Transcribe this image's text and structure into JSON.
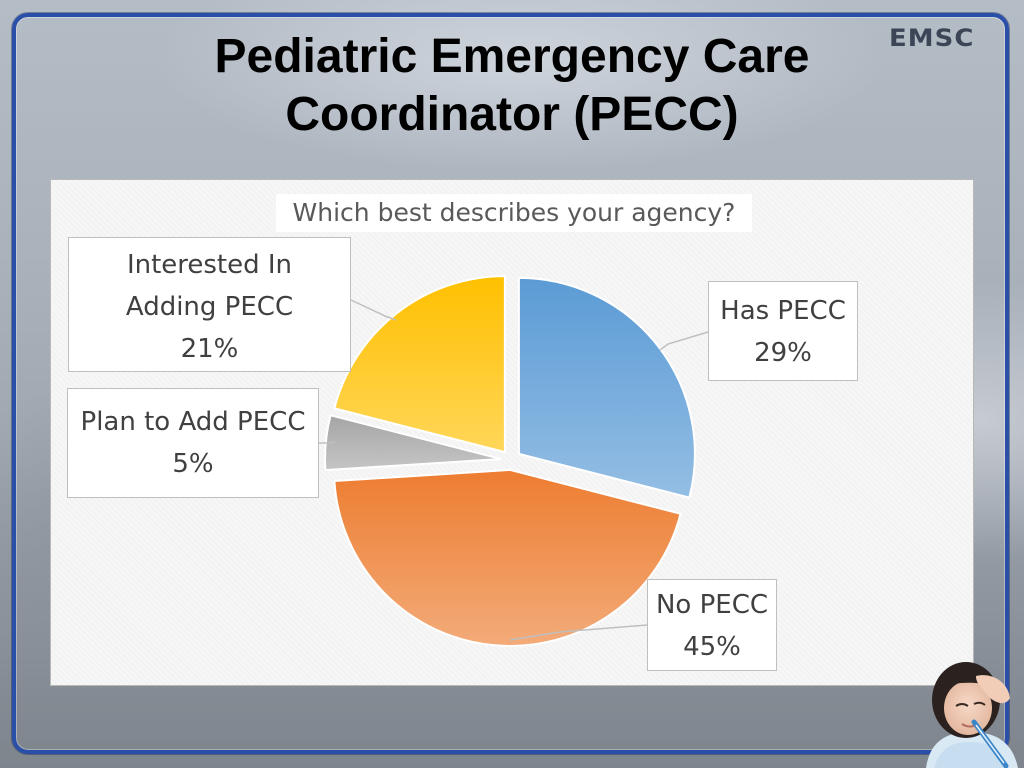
{
  "brand": {
    "logo_text": "EMSC"
  },
  "slide": {
    "title_lines": [
      "Pediatric Emergency Care",
      "Coordinator (PECC)"
    ]
  },
  "colors": {
    "frame": "#2a4fa8",
    "has_pecc": "#5b9bd5",
    "no_pecc": "#ed7d31",
    "plan_to_add": "#a5a5a5",
    "interested": "#ffc000"
  },
  "chart_data": {
    "type": "pie",
    "title": "Which best describes your agency?",
    "slices": [
      {
        "label": "Has PECC",
        "value": 29,
        "value_label": "29%",
        "color_key": "has_pecc",
        "exploded": true
      },
      {
        "label": "No PECC",
        "value": 45,
        "value_label": "45%",
        "color_key": "no_pecc",
        "exploded": true
      },
      {
        "label": "Plan to Add PECC",
        "value": 5,
        "value_label": "5%",
        "color_key": "plan_to_add",
        "exploded": true
      },
      {
        "label": "Interested In Adding PECC",
        "label_lines": [
          "Interested In",
          "Adding PECC"
        ],
        "value": 21,
        "value_label": "21%",
        "color_key": "interested",
        "exploded": true
      }
    ],
    "start_angle_deg": 0,
    "direction": "clockwise",
    "legend": "none",
    "data_labels": "callouts"
  },
  "images": {
    "child_photo": "child-with-thermometer-icon"
  }
}
